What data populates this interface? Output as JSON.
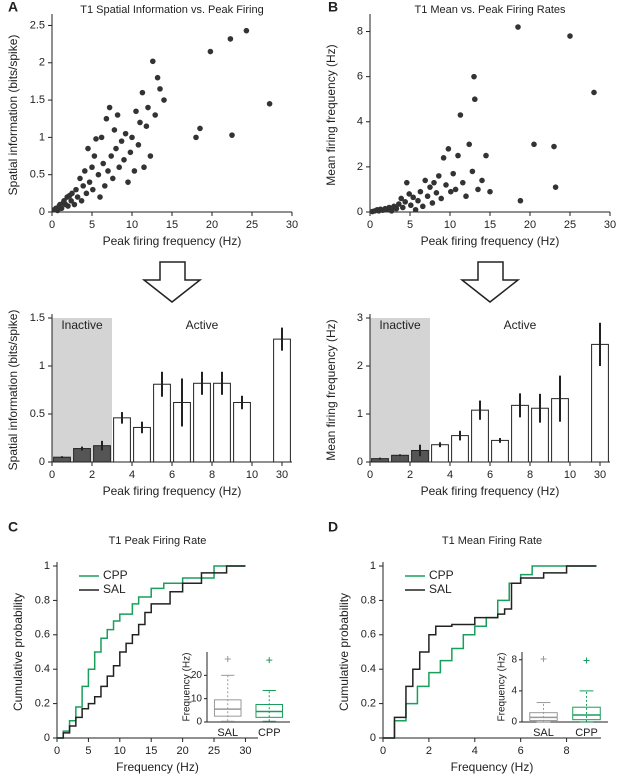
{
  "chart_data": [
    {
      "type": "scatter",
      "panel": "A",
      "title": "T1 Spatial Information vs. Peak Firing",
      "xlabel": "Peak firing frequency (Hz)",
      "ylabel": "Spatial information (bits/spike)",
      "xlim": [
        0,
        30
      ],
      "xticks": [
        0,
        5,
        10,
        15,
        20,
        25,
        30
      ],
      "ylim": [
        0,
        2.6
      ],
      "yticks": [
        0,
        0.5,
        1,
        1.5,
        2,
        2.5
      ],
      "color": "#333333",
      "x": [
        0.3,
        0.5,
        0.7,
        0.9,
        1,
        1.2,
        1.4,
        1.5,
        1.7,
        1.9,
        2,
        2.2,
        2.4,
        2.5,
        2.8,
        3,
        3.2,
        3.5,
        3.7,
        3.9,
        4.1,
        4.3,
        4.5,
        4.7,
        5,
        5.1,
        5.3,
        5.5,
        5.8,
        6,
        6.2,
        6.4,
        6.6,
        6.8,
        7,
        7.2,
        7.4,
        7.6,
        7.8,
        8,
        8.2,
        8.4,
        8.7,
        9,
        9.2,
        9.5,
        9.8,
        10,
        10.3,
        10.5,
        10.8,
        11,
        11.3,
        11.5,
        11.8,
        12,
        12.3,
        12.6,
        12.9,
        13.2,
        13.5,
        14,
        18,
        18.5,
        19.8,
        22.3,
        22.5,
        24.3,
        27.2
      ],
      "values": [
        0.03,
        0.05,
        0.02,
        0.08,
        0.1,
        0.05,
        0.12,
        0.15,
        0.1,
        0.2,
        0.08,
        0.22,
        0.15,
        0.25,
        0.1,
        0.3,
        0.2,
        0.45,
        0.15,
        0.35,
        0.55,
        0.25,
        0.85,
        0.4,
        0.6,
        0.3,
        0.75,
        0.98,
        0.5,
        0.2,
        1.0,
        0.65,
        0.35,
        1.25,
        0.55,
        1.4,
        0.75,
        0.45,
        1.1,
        0.85,
        1.3,
        0.6,
        0.95,
        0.7,
        1.05,
        0.4,
        0.8,
        1.0,
        0.55,
        1.35,
        0.9,
        1.2,
        1.6,
        0.6,
        1.15,
        1.4,
        0.75,
        2.02,
        1.3,
        1.8,
        1.65,
        1.5,
        1.0,
        1.12,
        2.15,
        2.32,
        1.03,
        2.43,
        1.45
      ]
    },
    {
      "type": "scatter",
      "panel": "B",
      "title": "T1 Mean vs. Peak Firing Rates",
      "xlabel": "Peak firing frequency (Hz)",
      "ylabel": "Mean firing frequency (Hz)",
      "xlim": [
        0,
        30
      ],
      "xticks": [
        0,
        5,
        10,
        15,
        20,
        25,
        30
      ],
      "ylim": [
        0,
        8.6
      ],
      "yticks": [
        0,
        2,
        4,
        6,
        8
      ],
      "color": "#333333",
      "x": [
        0.3,
        0.6,
        0.9,
        1.1,
        1.3,
        1.6,
        1.9,
        2.1,
        2.4,
        2.7,
        3,
        3.3,
        3.6,
        3.9,
        4.1,
        4.4,
        4.6,
        4.9,
        5.1,
        5.4,
        5.7,
        6,
        6.3,
        6.6,
        6.9,
        7.2,
        7.5,
        7.8,
        8,
        8.3,
        8.6,
        8.9,
        9.2,
        9.5,
        9.8,
        10.1,
        10.4,
        10.7,
        11,
        11.3,
        11.6,
        12,
        12.4,
        12.8,
        13,
        13.1,
        13.5,
        14,
        14.5,
        15,
        18.5,
        18.8,
        20.5,
        23,
        23.2,
        25,
        28
      ],
      "values": [
        0.02,
        0.05,
        0.1,
        0.05,
        0.12,
        0.08,
        0.15,
        0.1,
        0.2,
        0.05,
        0.25,
        0.15,
        0.35,
        0.6,
        0.2,
        0.45,
        1.3,
        0.8,
        0.3,
        0.65,
        0.1,
        0.5,
        0.9,
        0.25,
        1.4,
        0.7,
        1.1,
        0.4,
        1.3,
        0.85,
        1.6,
        0.6,
        2.4,
        1.2,
        2.8,
        0.9,
        1.7,
        1.0,
        2.5,
        4.3,
        1.3,
        0.7,
        3.0,
        1.8,
        6.0,
        5.0,
        1.0,
        1.4,
        2.5,
        0.9,
        8.2,
        0.5,
        3.0,
        2.9,
        1.1,
        7.8,
        5.3
      ]
    },
    {
      "type": "bar",
      "ylabel": "Spatial information (bits/spike)",
      "xlabel": "Peak firing frequency (Hz)",
      "region_labels": [
        "Inactive",
        "Active"
      ],
      "categories": [
        null,
        null,
        null,
        null,
        null,
        null,
        null,
        null,
        null,
        null,
        null
      ],
      "xtick_labels": [
        "0",
        "2",
        "4",
        "6",
        "8",
        "10",
        "30"
      ],
      "ylim": [
        0,
        1.5
      ],
      "yticks": [
        0,
        0.5,
        1,
        1.5
      ],
      "values": [
        0.05,
        0.14,
        0.17,
        0.46,
        0.36,
        0.81,
        0.62,
        0.82,
        0.82,
        0.62,
        1.28
      ],
      "errors": [
        0.01,
        0.02,
        0.05,
        0.06,
        0.06,
        0.13,
        0.25,
        0.12,
        0.12,
        0.07,
        0.12
      ],
      "colors": [
        "#555555",
        "#555555",
        "#555555",
        "#ffffff",
        "#ffffff",
        "#ffffff",
        "#ffffff",
        "#ffffff",
        "#ffffff",
        "#ffffff",
        "#ffffff"
      ]
    },
    {
      "type": "bar",
      "ylabel": "Mean firing frequency (Hz)",
      "xlabel": "Peak firing frequency (Hz)",
      "region_labels": [
        "Inactive",
        "Active"
      ],
      "categories": [
        null,
        null,
        null,
        null,
        null,
        null,
        null,
        null,
        null,
        null,
        null
      ],
      "xtick_labels": [
        "0",
        "2",
        "4",
        "6",
        "8",
        "10",
        "30"
      ],
      "ylim": [
        0,
        3
      ],
      "yticks": [
        0,
        1,
        2,
        3
      ],
      "values": [
        0.07,
        0.14,
        0.24,
        0.36,
        0.55,
        1.08,
        0.45,
        1.18,
        1.12,
        1.32,
        2.45
      ],
      "errors": [
        0.02,
        0.02,
        0.12,
        0.05,
        0.1,
        0.2,
        0.05,
        0.25,
        0.3,
        0.48,
        0.45
      ],
      "colors": [
        "#555555",
        "#555555",
        "#555555",
        "#ffffff",
        "#ffffff",
        "#ffffff",
        "#ffffff",
        "#ffffff",
        "#ffffff",
        "#ffffff",
        "#ffffff"
      ]
    },
    {
      "type": "step",
      "panel": "C",
      "title": "T1 Peak Firing Rate",
      "xlabel": "Frequency (Hz)",
      "ylabel": "Cumulative probability",
      "xlim": [
        0,
        32
      ],
      "xticks": [
        0,
        5,
        10,
        15,
        20,
        25,
        30
      ],
      "ylim": [
        0,
        1
      ],
      "yticks": [
        0,
        0.2,
        0.4,
        0.6,
        0.8,
        1
      ],
      "series": [
        {
          "name": "CPP",
          "color": "#1a9e5c",
          "x": [
            0,
            1,
            2,
            3,
            4,
            5,
            6,
            7,
            8,
            9,
            10,
            12,
            13,
            15,
            17,
            20,
            25,
            30
          ],
          "values": [
            0,
            0.04,
            0.1,
            0.18,
            0.3,
            0.4,
            0.5,
            0.58,
            0.63,
            0.68,
            0.72,
            0.78,
            0.82,
            0.87,
            0.9,
            0.93,
            1,
            1
          ]
        },
        {
          "name": "SAL",
          "color": "#222222",
          "x": [
            0,
            1,
            2,
            3,
            4,
            5,
            6,
            7,
            8,
            9,
            10,
            11,
            12,
            13,
            14,
            15,
            18,
            20,
            23,
            27,
            30
          ],
          "values": [
            0,
            0.03,
            0.07,
            0.12,
            0.17,
            0.2,
            0.24,
            0.3,
            0.36,
            0.42,
            0.5,
            0.55,
            0.6,
            0.66,
            0.73,
            0.78,
            0.85,
            0.9,
            0.96,
            1,
            1
          ]
        }
      ],
      "inset": {
        "ylabel": "Frequency (Hz)",
        "categories": [
          "SAL",
          "CPP"
        ],
        "ylim": [
          0,
          30
        ],
        "yticks": [
          0,
          10,
          20
        ],
        "boxes": [
          {
            "color": "#999999",
            "whisker_low": 0.3,
            "q1": 2.5,
            "median": 5.5,
            "q3": 9.5,
            "whisker_high": 20,
            "max": 27
          },
          {
            "color": "#1a9e5c",
            "whisker_low": 0.3,
            "q1": 2,
            "median": 4.5,
            "q3": 7.5,
            "whisker_high": 13.5,
            "max": 26.5
          }
        ]
      }
    },
    {
      "type": "step",
      "panel": "D",
      "title": "T1 Mean Firing Rate",
      "xlabel": "Frequency (Hz)",
      "ylabel": "Cumulative probability",
      "xlim": [
        0,
        9.5
      ],
      "xticks": [
        0,
        2,
        4,
        6,
        8
      ],
      "ylim": [
        0,
        1
      ],
      "yticks": [
        0,
        0.2,
        0.4,
        0.6,
        0.8,
        1
      ],
      "series": [
        {
          "name": "CPP",
          "color": "#1a9e5c",
          "x": [
            0,
            0.5,
            1,
            1.5,
            2,
            2.5,
            3,
            3.5,
            4,
            4.5,
            5,
            5.5,
            6,
            6.5,
            9.3
          ],
          "values": [
            0,
            0.1,
            0.2,
            0.3,
            0.38,
            0.45,
            0.52,
            0.6,
            0.65,
            0.7,
            0.8,
            0.9,
            0.95,
            1,
            1
          ]
        },
        {
          "name": "SAL",
          "color": "#222222",
          "x": [
            0,
            0.5,
            1,
            1.3,
            1.6,
            2,
            2.3,
            3,
            4,
            5,
            5.3,
            5.6,
            6,
            7,
            8,
            9.3
          ],
          "values": [
            0,
            0.12,
            0.3,
            0.4,
            0.5,
            0.6,
            0.65,
            0.66,
            0.7,
            0.72,
            0.75,
            0.9,
            0.93,
            0.96,
            1,
            1
          ]
        }
      ],
      "inset": {
        "ylabel": "Frequency (Hz)",
        "categories": [
          "SAL",
          "CPP"
        ],
        "ylim": [
          0,
          9
        ],
        "yticks": [
          0,
          4,
          8
        ],
        "boxes": [
          {
            "color": "#999999",
            "whisker_low": 0.02,
            "q1": 0.2,
            "median": 0.6,
            "q3": 1.2,
            "whisker_high": 2.5,
            "max": 8.1
          },
          {
            "color": "#1a9e5c",
            "whisker_low": 0.02,
            "q1": 0.3,
            "median": 0.9,
            "q3": 1.9,
            "whisker_high": 4,
            "max": 7.9
          }
        ]
      }
    }
  ]
}
